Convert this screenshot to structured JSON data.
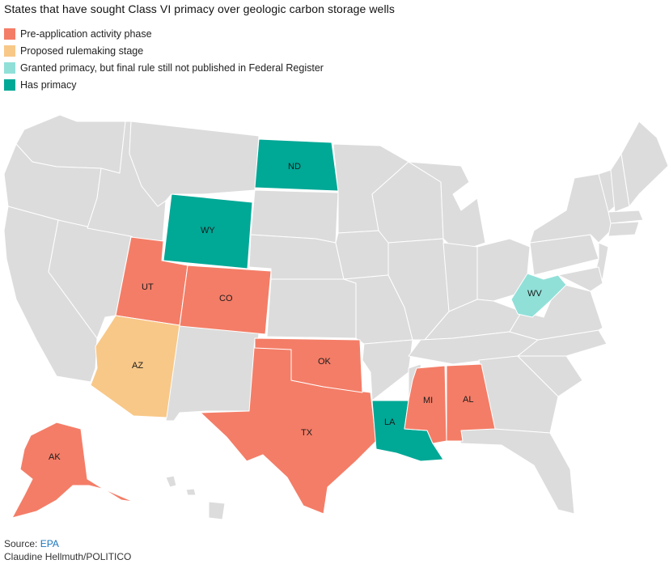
{
  "title": "States that have sought Class VI primacy over geologic carbon storage wells",
  "legend": [
    {
      "label": "Pre-application activity phase",
      "color": "#f47d67"
    },
    {
      "label": "Proposed rulemaking stage",
      "color": "#f8c888"
    },
    {
      "label": "Granted primacy, but final rule still not published in Federal Register",
      "color": "#90e0d8"
    },
    {
      "label": "Has primacy",
      "color": "#00a896"
    }
  ],
  "colors": {
    "default_state": "#dcdcdc",
    "border": "#ffffff",
    "pre_application": "#f47d67",
    "proposed": "#f8c888",
    "granted": "#90e0d8",
    "has_primacy": "#00a896"
  },
  "states": {
    "ND": {
      "label": "ND",
      "status": "has_primacy"
    },
    "WY": {
      "label": "WY",
      "status": "has_primacy"
    },
    "LA": {
      "label": "LA",
      "status": "has_primacy"
    },
    "WV": {
      "label": "WV",
      "status": "granted"
    },
    "AZ": {
      "label": "AZ",
      "status": "proposed"
    },
    "UT": {
      "label": "UT",
      "status": "pre_application"
    },
    "CO": {
      "label": "CO",
      "status": "pre_application"
    },
    "TX": {
      "label": "TX",
      "status": "pre_application"
    },
    "OK": {
      "label": "OK",
      "status": "pre_application"
    },
    "MI": {
      "label": "MI",
      "status": "pre_application"
    },
    "AL": {
      "label": "AL",
      "status": "pre_application"
    },
    "AK": {
      "label": "AK",
      "status": "pre_application"
    }
  },
  "footer": {
    "source_prefix": "Source: ",
    "source_link": "EPA",
    "credit": "Claudine Hellmuth/POLITICO"
  }
}
